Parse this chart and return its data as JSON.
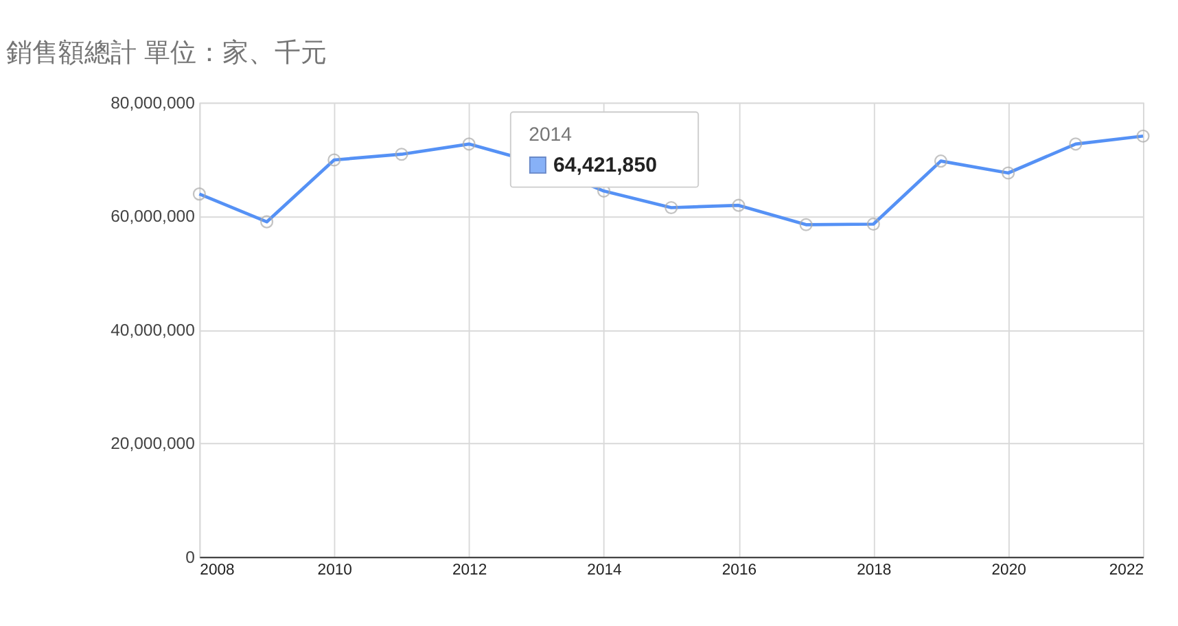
{
  "chart_data": {
    "type": "line",
    "title": "銷售額總計 單位：家、千元",
    "x": [
      2008,
      2009,
      2010,
      2011,
      2012,
      2013,
      2014,
      2015,
      2016,
      2017,
      2018,
      2019,
      2020,
      2021,
      2022
    ],
    "series": [
      {
        "color": "#5591f5",
        "values": [
          63900000,
          59000000,
          69900000,
          70900000,
          72700000,
          69400000,
          64421850,
          61500000,
          61900000,
          58500000,
          58600000,
          69700000,
          67600000,
          72700000,
          74100000
        ]
      }
    ],
    "xlim": [
      2008,
      2022
    ],
    "xticks": [
      2008,
      2010,
      2012,
      2014,
      2016,
      2018,
      2020,
      2022
    ],
    "ylim": [
      0,
      80000000
    ],
    "yticks": [
      0,
      {
        "value": 20000000,
        "label": "20,000,000"
      },
      {
        "value": 40000000,
        "label": "40,000,000"
      },
      {
        "value": 60000000,
        "label": "60,000,000"
      },
      {
        "value": 80000000,
        "label": "80,000,000"
      }
    ],
    "grid": true,
    "marker": "circle",
    "line_style": "solid",
    "annotations": [
      {
        "text": "2014",
        "x": 2014,
        "y": 64421850
      },
      {
        "text": "64,421,850",
        "x": 2014,
        "y": 64421850
      }
    ]
  }
}
